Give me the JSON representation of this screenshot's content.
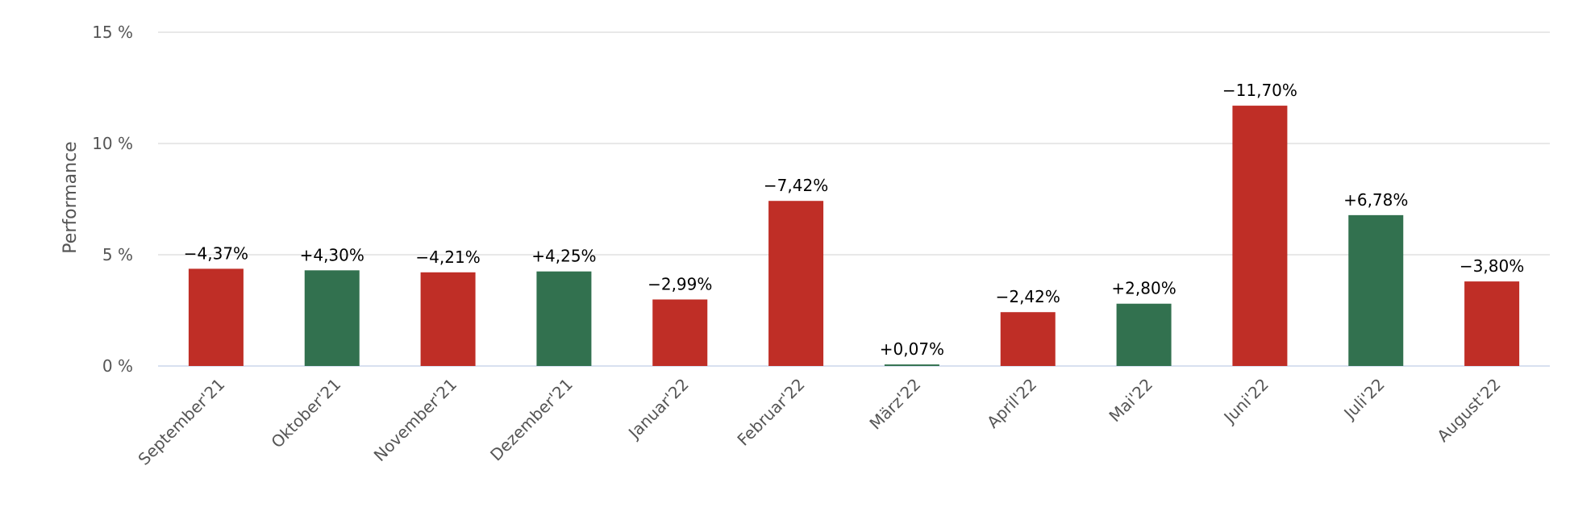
{
  "chart_data": {
    "type": "bar",
    "ylabel": "Performance",
    "ylim": [
      0,
      15
    ],
    "yticks": [
      {
        "value": 0,
        "label": "0 %"
      },
      {
        "value": 5,
        "label": "5 %"
      },
      {
        "value": 10,
        "label": "10 %"
      },
      {
        "value": 15,
        "label": "15 %"
      }
    ],
    "grid": true,
    "categories": [
      "September'21",
      "Oktober'21",
      "November'21",
      "Dezember'21",
      "Januar'22",
      "Februar'22",
      "März'22",
      "April'22",
      "Mai'22",
      "Juni'22",
      "Juli'22",
      "August'22"
    ],
    "values": [
      4.37,
      4.3,
      4.21,
      4.25,
      2.99,
      7.42,
      0.07,
      2.42,
      2.8,
      11.7,
      6.78,
      3.8
    ],
    "data_labels": [
      "−4,37%",
      "+4,30%",
      "−4,21%",
      "+4,25%",
      "−2,99%",
      "−7,42%",
      "+0,07%",
      "−2,42%",
      "+2,80%",
      "−11,70%",
      "+6,78%",
      "−3,80%"
    ],
    "direction": [
      "negative",
      "positive",
      "negative",
      "positive",
      "negative",
      "negative",
      "positive",
      "negative",
      "positive",
      "negative",
      "positive",
      "negative"
    ],
    "colors": {
      "positive": "#32714f",
      "negative": "#bf2e26",
      "grid": "#e0e0e0",
      "axis": "#ccd6eb"
    }
  }
}
